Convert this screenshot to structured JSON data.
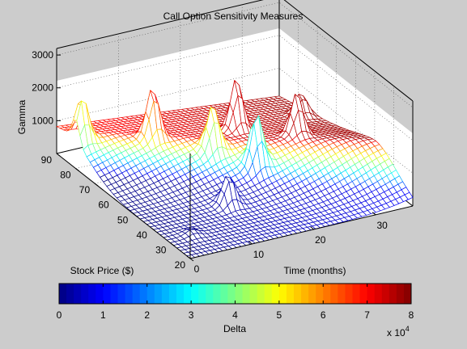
{
  "chart_data": [
    {
      "type": "surface",
      "title": "Call Option Sensitivity Measures",
      "xlabel": "Time (months)",
      "ylabel": "Stock Price ($)",
      "zlabel": "Gamma",
      "x_ticks": [
        "0",
        "10",
        "20",
        "30"
      ],
      "y_ticks": [
        "20",
        "30",
        "40",
        "50",
        "60",
        "70",
        "80",
        "90"
      ],
      "z_ticks": [
        "1000",
        "2000",
        "3000"
      ],
      "x_range": [
        0,
        36
      ],
      "y_range": [
        20,
        90
      ],
      "z_range": [
        0,
        3200
      ],
      "grid": true,
      "colormap": "jet",
      "surface": {
        "base_gamma": 900,
        "ridge_stock_price_start": 85,
        "ridge_stock_price_end": 40,
        "peaks": [
          {
            "time": 1,
            "stock_price": 80,
            "gamma": 1300
          },
          {
            "time": 4,
            "stock_price": 32,
            "gamma": 150
          },
          {
            "time": 10,
            "stock_price": 72,
            "gamma": 1500
          },
          {
            "time": 13,
            "stock_price": 42,
            "gamma": 900
          },
          {
            "time": 16,
            "stock_price": 60,
            "gamma": 1300
          },
          {
            "time": 20,
            "stock_price": 50,
            "gamma": 1500
          },
          {
            "time": 22,
            "stock_price": 67,
            "gamma": 1600
          },
          {
            "time": 28,
            "stock_price": 55,
            "gamma": 1300
          },
          {
            "time": 34,
            "stock_price": 72,
            "gamma": 700
          }
        ]
      }
    },
    {
      "type": "colorbar",
      "label": "Delta",
      "ticks": [
        "0",
        "1",
        "2",
        "3",
        "4",
        "5",
        "6",
        "7",
        "8"
      ],
      "range": [
        0,
        8
      ],
      "exponent_label": "x 10",
      "exponent": "4",
      "colormap": "jet"
    }
  ]
}
